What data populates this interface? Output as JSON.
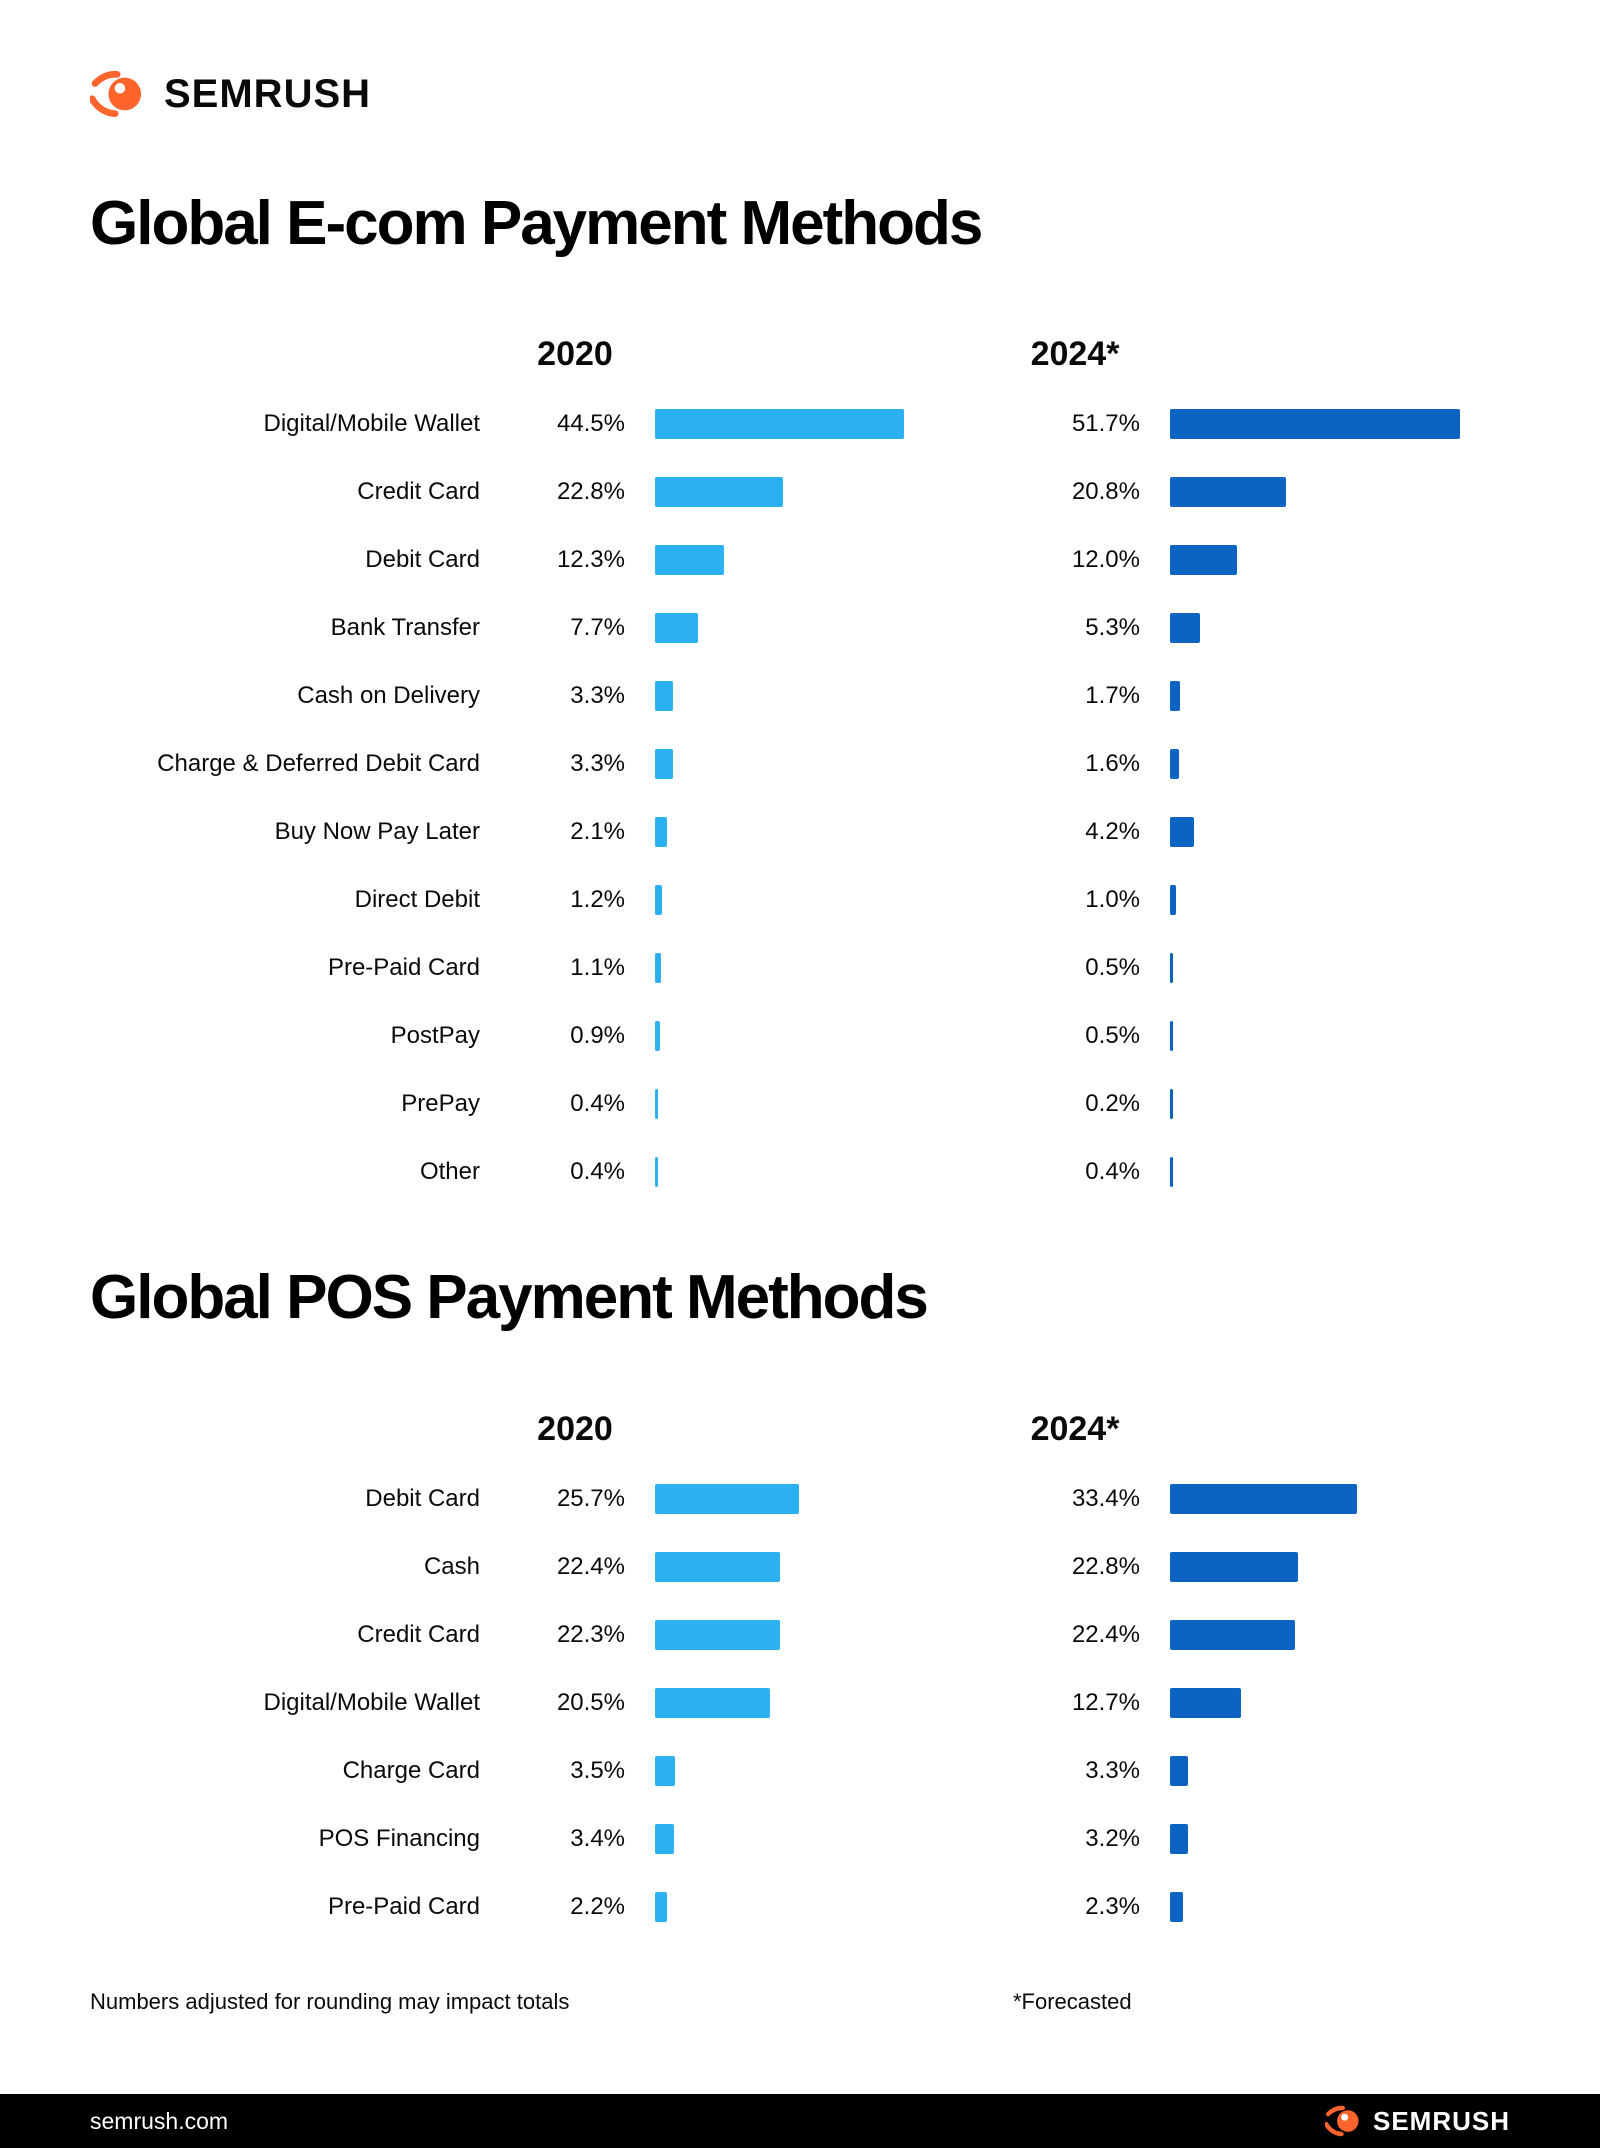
{
  "brand": {
    "logo_text": "SEMRUSH",
    "accent_orange": "#FF642D"
  },
  "colors": {
    "bar_2020": "#2BB0F2",
    "bar_2024": "#0C63C2",
    "footer_bg": "#000000",
    "text": "#0A0A0A",
    "background": "#FFFFFF"
  },
  "chart_data": [
    {
      "type": "bar",
      "orientation": "horizontal",
      "title": "Global E-com Payment Methods",
      "unit": "%",
      "categories": [
        "Digital/Mobile Wallet",
        "Credit Card",
        "Debit Card",
        "Bank Transfer",
        "Cash on Delivery",
        "Charge & Deferred Debit Card",
        "Buy Now Pay Later",
        "Direct Debit",
        "Pre-Paid Card",
        "PostPay",
        "PrePay",
        "Other"
      ],
      "series": [
        {
          "name": "2020",
          "values": [
            44.5,
            22.8,
            12.3,
            7.7,
            3.3,
            3.3,
            2.1,
            1.2,
            1.1,
            0.9,
            0.4,
            0.4
          ]
        },
        {
          "name": "2024*",
          "values": [
            51.7,
            20.8,
            12.0,
            5.3,
            1.7,
            1.6,
            4.2,
            1.0,
            0.5,
            0.5,
            0.2,
            0.4
          ]
        }
      ]
    },
    {
      "type": "bar",
      "orientation": "horizontal",
      "title": "Global POS Payment Methods",
      "unit": "%",
      "categories": [
        "Debit Card",
        "Cash",
        "Credit Card",
        "Digital/Mobile Wallet",
        "Charge Card",
        "POS Financing",
        "Pre-Paid Card"
      ],
      "series": [
        {
          "name": "2020",
          "values": [
            25.7,
            22.4,
            22.3,
            20.5,
            3.5,
            3.4,
            2.2
          ]
        },
        {
          "name": "2024*",
          "values": [
            33.4,
            22.8,
            22.4,
            12.7,
            3.3,
            3.2,
            2.3
          ]
        }
      ]
    }
  ],
  "footnotes": {
    "rounding_note": "Numbers adjusted for rounding may impact totals",
    "forecast_note": "*Forecasted"
  },
  "footer": {
    "site_url_text": "semrush.com",
    "logo_text": "SEMRUSH"
  }
}
